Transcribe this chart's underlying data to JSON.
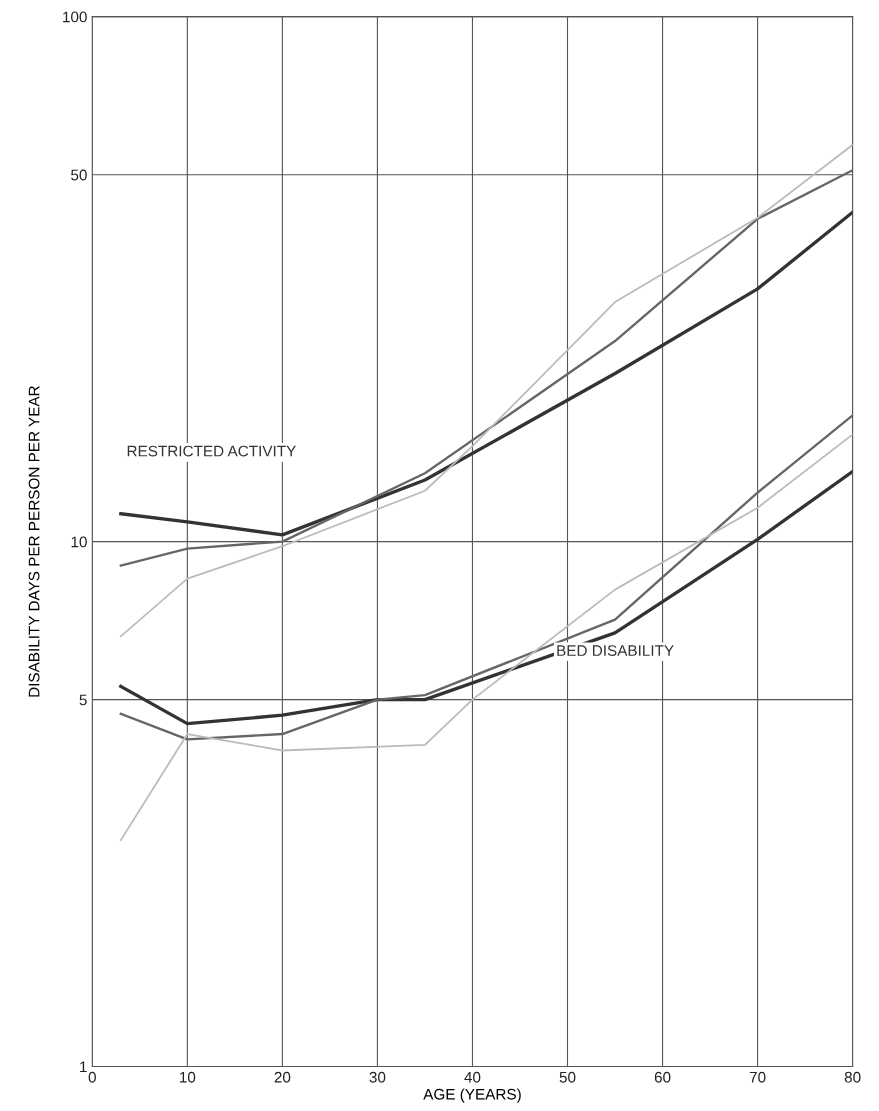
{
  "chart_data": {
    "type": "line",
    "xlabel": "AGE (YEARS)",
    "ylabel": "DISABILITY DAYS PER PERSON PER YEAR",
    "log": "y",
    "grid": true,
    "marker": "none",
    "line_style": "solid",
    "xlim": [
      0,
      80
    ],
    "xticks": [
      0,
      10,
      20,
      30,
      40,
      50,
      60,
      70,
      80
    ],
    "ylim": [
      1,
      100
    ],
    "yticks": [
      1,
      5,
      10,
      50,
      100
    ],
    "annotations": [
      "RESTRICTED ACTIVITY",
      "BED DISABILITY"
    ],
    "series": [
      {
        "color": "#333333",
        "x": [
          3,
          10,
          20,
          35,
          55,
          70,
          80
        ],
        "values": [
          11.3,
          10.9,
          10.3,
          13.1,
          20.9,
          30.3,
          42.4
        ]
      },
      {
        "color": "#666666",
        "x": [
          3,
          10,
          20,
          35,
          55,
          70,
          80
        ],
        "values": [
          9.0,
          9.7,
          10.0,
          13.5,
          24.1,
          41.2,
          51
        ]
      },
      {
        "color": "#bbbbbb",
        "x": [
          3,
          10,
          20,
          35,
          40,
          55,
          70,
          80
        ],
        "values": [
          6.6,
          8.5,
          9.8,
          12.5,
          15.2,
          28.6,
          41.4,
          57
        ]
      },
      {
        "color": "#333333",
        "x": [
          3,
          10,
          20,
          30,
          35,
          55,
          70,
          80
        ],
        "values": [
          5.3,
          4.5,
          4.67,
          5.0,
          5.0,
          6.7,
          10.1,
          13.6
        ]
      },
      {
        "color": "#666666",
        "x": [
          3,
          10,
          20,
          30,
          35,
          55,
          70,
          80
        ],
        "values": [
          4.7,
          4.2,
          4.3,
          5.0,
          5.1,
          7.1,
          12.4,
          17.4
        ]
      },
      {
        "color": "#bbbbbb",
        "x": [
          3,
          10,
          20,
          35,
          40,
          55,
          70,
          80
        ],
        "values": [
          2.7,
          4.3,
          4.0,
          4.1,
          5.0,
          8.1,
          11.6,
          16.0
        ]
      }
    ]
  }
}
